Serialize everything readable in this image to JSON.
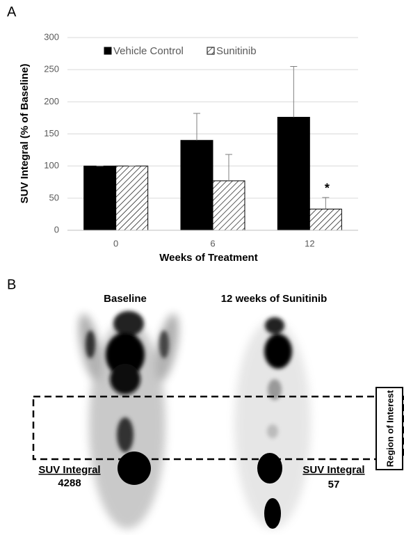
{
  "panel_labels": [
    "A",
    "B"
  ],
  "chart_data": {
    "type": "bar",
    "x_label": "Weeks of Treatment",
    "y_label": "SUV Integral (% of Baseline)",
    "categories": [
      "0",
      "6",
      "12"
    ],
    "series": [
      {
        "name": "Vehicle Control",
        "color": "#000000",
        "hatch": false,
        "values": [
          100,
          140,
          176
        ],
        "errors": [
          0,
          42,
          79
        ]
      },
      {
        "name": "Sunitinib",
        "color": "#000000",
        "hatch": true,
        "values": [
          100,
          77,
          33
        ],
        "errors": [
          0,
          41,
          18
        ]
      }
    ],
    "annotations": [
      {
        "text": "*",
        "series": 1,
        "category": 2
      }
    ],
    "ylim": [
      0,
      300
    ],
    "yticks": [
      0,
      50,
      100,
      150,
      200,
      250,
      300
    ],
    "grid": true,
    "legend": "top"
  },
  "image_panel": {
    "left_title": "Baseline",
    "right_title": "12 weeks of Sunitinib",
    "region_label": "Region of Interest",
    "left_metric": {
      "label": "SUV Integral",
      "value": "4288"
    },
    "right_metric": {
      "label": "SUV Integral",
      "value": "57"
    }
  }
}
